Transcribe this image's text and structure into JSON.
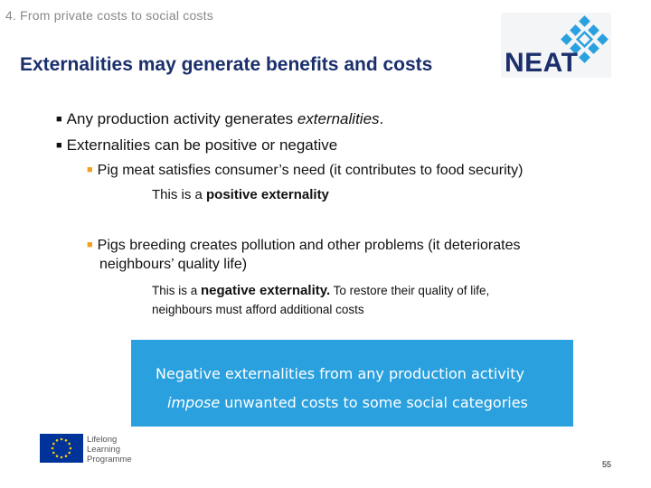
{
  "header": {
    "section_label": "4. From private costs to social costs",
    "title": "Externalities may generate benefits and costs"
  },
  "logo": {
    "text": "NEAT",
    "mark_color": "#2aa0de"
  },
  "bullets": [
    {
      "text_plain": "Any production activity generates ",
      "text_italic": "externalities",
      "text_end": "."
    },
    {
      "text": "Externalities can be positive or negative"
    }
  ],
  "sub_bullets": [
    {
      "text": "Pig meat satisfies consumer’s need (it contributes to food security)",
      "note_plain": "This is a ",
      "note_bold": "positive externality"
    },
    {
      "line1": "Pigs breeding creates pollution and other problems (it deteriorates",
      "line2": "neighbours’ quality life)",
      "note_plain": "This is a ",
      "note_bold": "negative externality.",
      "note_rest": " To restore their quality of life,",
      "note_line2": "neighbours must afford additional costs"
    }
  ],
  "callout": {
    "line1": "Negative externalities from any production activity",
    "line2_italic": "impose",
    "line2_rest": " unwanted costs  to some social categories",
    "background": "#2aa0de"
  },
  "footer": {
    "programme_lines": [
      "Lifelong",
      "Learning",
      "Programme"
    ],
    "page_number": "55",
    "eu_flag_color": "#003399"
  },
  "colors": {
    "title": "#1a2f6b",
    "sub_bullet_marker": "#f0a020"
  }
}
